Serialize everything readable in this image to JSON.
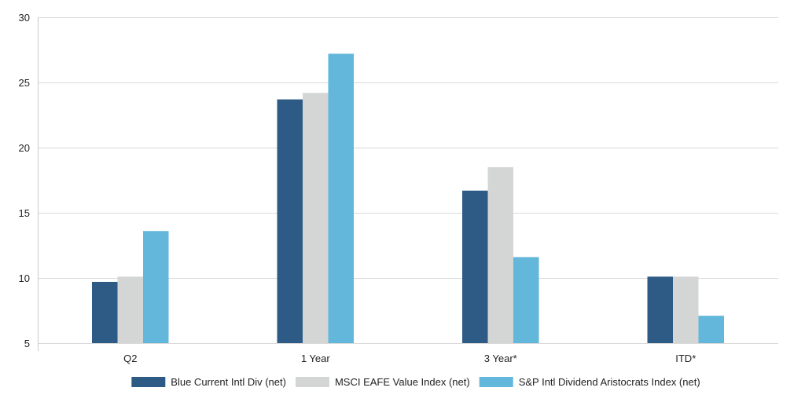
{
  "chart_data": {
    "type": "bar",
    "categories": [
      "Q2",
      "1 Year",
      "3 Year*",
      "ITD*"
    ],
    "series": [
      {
        "name": "Blue Current Intl Div (net)",
        "color": "#2e5a86",
        "values": [
          9.7,
          23.7,
          16.7,
          10.1
        ]
      },
      {
        "name": "MSCI EAFE Value Index (net)",
        "color": "#d4d6d6",
        "values": [
          10.1,
          24.2,
          18.5,
          10.1
        ]
      },
      {
        "name": "S&P Intl Dividend Aristocrats Index (net)",
        "color": "#62b7db",
        "values": [
          13.6,
          27.2,
          11.6,
          7.1
        ]
      }
    ],
    "ylim": [
      5,
      30
    ],
    "yticks": [
      5,
      10,
      15,
      20,
      25,
      30
    ],
    "grid": true,
    "legend_position": "bottom-center",
    "title": "",
    "xlabel": "",
    "ylabel": ""
  }
}
